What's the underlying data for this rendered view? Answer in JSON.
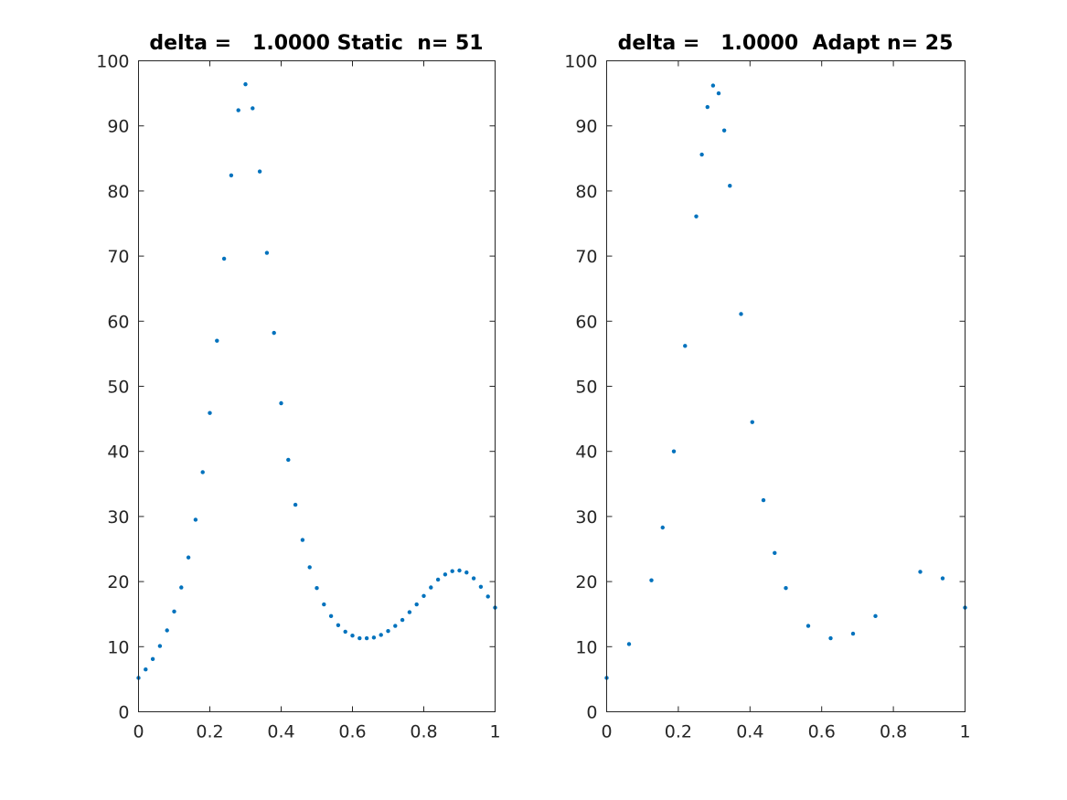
{
  "chart_data": [
    {
      "type": "scatter",
      "title": "delta =   1.0000 Static  n= 51",
      "xlim": [
        0,
        1
      ],
      "ylim": [
        0,
        100
      ],
      "xticks": [
        "0",
        "0.2",
        "0.4",
        "0.6",
        "0.8",
        "1"
      ],
      "yticks": [
        "0",
        "10",
        "20",
        "30",
        "40",
        "50",
        "60",
        "70",
        "80",
        "90",
        "100"
      ],
      "grid": false,
      "marker_color": "#0072BD",
      "x": [
        0,
        0.02,
        0.04,
        0.06,
        0.08,
        0.1,
        0.12,
        0.14,
        0.16,
        0.18,
        0.2,
        0.22,
        0.24,
        0.26,
        0.28,
        0.3,
        0.32,
        0.34,
        0.36,
        0.38,
        0.4,
        0.42,
        0.44,
        0.46,
        0.48,
        0.5,
        0.52,
        0.54,
        0.56,
        0.58,
        0.6,
        0.62,
        0.64,
        0.66,
        0.68,
        0.7,
        0.72,
        0.74,
        0.76,
        0.78,
        0.8,
        0.82,
        0.84,
        0.86,
        0.88,
        0.9,
        0.92,
        0.94,
        0.96,
        0.98,
        1
      ],
      "y": [
        5.2,
        6.5,
        8.1,
        10.1,
        12.5,
        15.4,
        19.1,
        23.7,
        29.5,
        36.8,
        45.9,
        57.0,
        69.6,
        82.4,
        92.4,
        96.4,
        92.7,
        83.0,
        70.5,
        58.2,
        47.4,
        38.7,
        31.8,
        26.4,
        22.2,
        19.0,
        16.5,
        14.7,
        13.3,
        12.3,
        11.7,
        11.3,
        11.3,
        11.4,
        11.8,
        12.4,
        13.2,
        14.1,
        15.3,
        16.5,
        17.8,
        19.1,
        20.3,
        21.1,
        21.6,
        21.7,
        21.4,
        20.5,
        19.2,
        17.7,
        16.0
      ]
    },
    {
      "type": "scatter",
      "title": "delta =   1.0000  Adapt n= 25",
      "xlim": [
        0,
        1
      ],
      "ylim": [
        0,
        100
      ],
      "xticks": [
        "0",
        "0.2",
        "0.4",
        "0.6",
        "0.8",
        "1"
      ],
      "yticks": [
        "0",
        "10",
        "20",
        "30",
        "40",
        "50",
        "60",
        "70",
        "80",
        "90",
        "100"
      ],
      "grid": false,
      "marker_color": "#0072BD",
      "x": [
        0,
        0.0625,
        0.125,
        0.1563,
        0.1875,
        0.2188,
        0.25,
        0.2656,
        0.2813,
        0.2969,
        0.3125,
        0.3281,
        0.3438,
        0.375,
        0.4063,
        0.4375,
        0.4688,
        0.5,
        0.5625,
        0.625,
        0.6875,
        0.75,
        0.875,
        0.9375,
        1
      ],
      "y": [
        5.2,
        10.4,
        20.2,
        28.3,
        40.0,
        56.2,
        76.1,
        85.6,
        92.9,
        96.2,
        95.0,
        89.3,
        80.8,
        61.1,
        44.5,
        32.5,
        24.4,
        19.0,
        13.2,
        11.3,
        12.0,
        14.7,
        21.5,
        20.5,
        16.0
      ]
    }
  ]
}
